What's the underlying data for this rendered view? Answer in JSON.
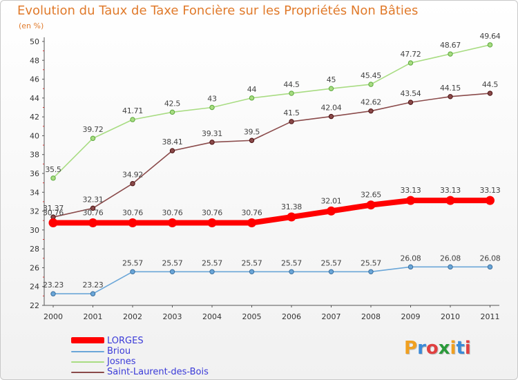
{
  "title": "Evolution du Taux de Taxe Foncière sur les Propriétés Non Bâties",
  "unit_label": "(en %)",
  "logo_text": "Proxiti",
  "chart_data": {
    "type": "line",
    "title": "Evolution du Taux de Taxe Foncière sur les Propriétés Non Bâties",
    "ylabel": "(en %)",
    "xlabel": "",
    "ylim": [
      22,
      50
    ],
    "yticks": [
      22,
      24,
      26,
      28,
      30,
      32,
      34,
      36,
      38,
      40,
      42,
      44,
      46,
      48,
      50
    ],
    "grid": false,
    "legend_position": "bottom-left",
    "x": [
      "2000",
      "2001",
      "2002",
      "2003",
      "2004",
      "2005",
      "2006",
      "2007",
      "2008",
      "2009",
      "2010",
      "2011"
    ],
    "series": [
      {
        "name": "LORGES",
        "color": "#ff0000",
        "values": [
          30.76,
          30.76,
          30.76,
          30.76,
          30.76,
          30.76,
          31.38,
          32.01,
          32.65,
          33.13,
          33.13,
          33.13
        ],
        "labels": [
          "30.76",
          "30.76",
          "30.76",
          "30.76",
          "30.76",
          "30.76",
          "31.38",
          "32.01",
          "32.65",
          "33.13",
          "33.13",
          "33.13"
        ]
      },
      {
        "name": "Briou",
        "color": "#6aa6d8",
        "values": [
          23.23,
          23.23,
          25.57,
          25.57,
          25.57,
          25.57,
          25.57,
          25.57,
          25.57,
          26.08,
          26.08,
          26.08
        ],
        "labels": [
          "23.23",
          "23.23",
          "25.57",
          "25.57",
          "25.57",
          "25.57",
          "25.57",
          "25.57",
          "25.57",
          "26.08",
          "26.08",
          "26.08"
        ]
      },
      {
        "name": "Josnes",
        "color": "#a8dc82",
        "values": [
          35.5,
          39.72,
          41.71,
          42.5,
          43,
          44,
          44.5,
          45,
          45.45,
          47.72,
          48.67,
          49.64
        ],
        "labels": [
          "35.5",
          "39.72",
          "41.71",
          "42.5",
          "43",
          "44",
          "44.5",
          "45",
          "45.45",
          "47.72",
          "48.67",
          "49.64"
        ]
      },
      {
        "name": "Saint-Laurent-des-Bois",
        "color": "#8a4a4a",
        "values": [
          31.37,
          32.31,
          34.92,
          38.41,
          39.31,
          39.5,
          41.5,
          42.04,
          42.62,
          43.54,
          44.15,
          44.5
        ],
        "labels": [
          "31.37",
          "32.31",
          "34.92",
          "38.41",
          "39.31",
          "39.5",
          "41.5",
          "42.04",
          "42.62",
          "43.54",
          "44.15",
          "44.5"
        ]
      }
    ]
  }
}
